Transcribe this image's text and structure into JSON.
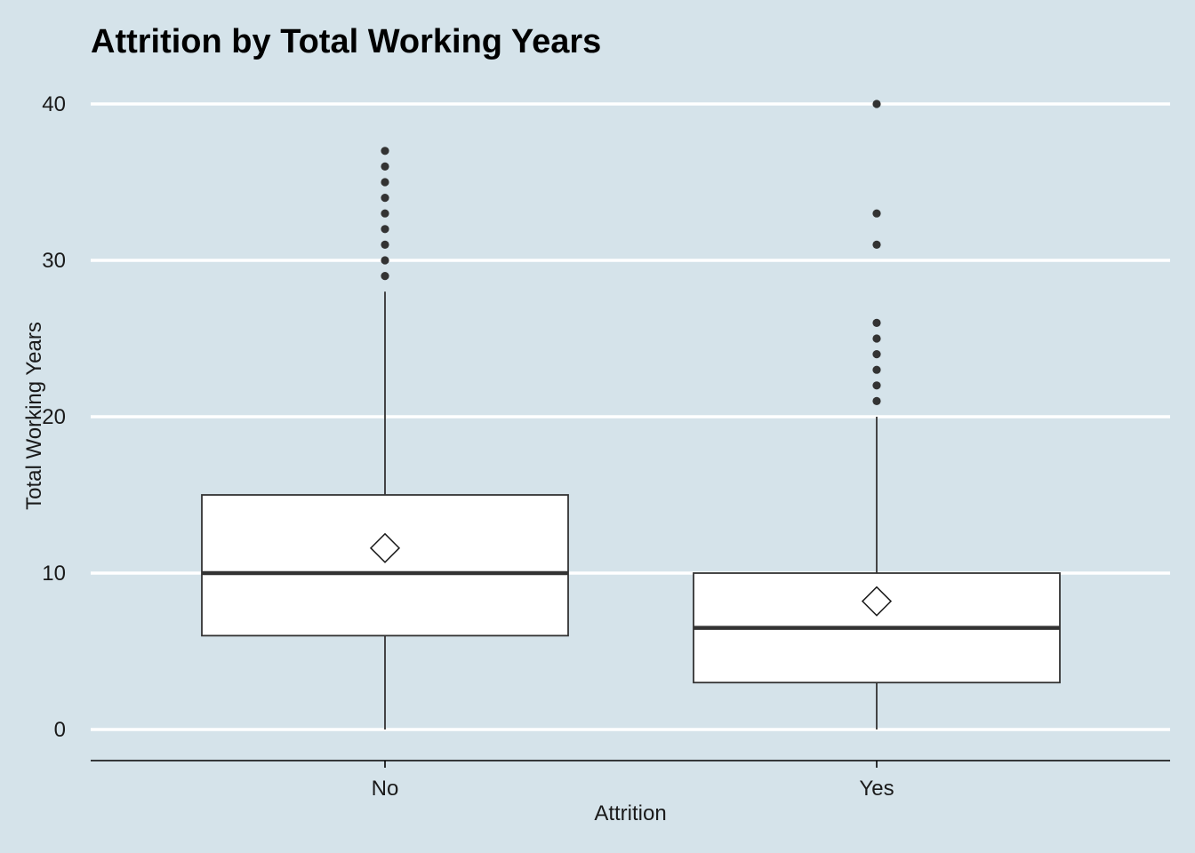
{
  "chart_data": {
    "type": "box",
    "title": "Attrition by Total Working Years",
    "xlabel": "Attrition",
    "ylabel": "Total Working Years",
    "categories": [
      "No",
      "Yes"
    ],
    "ylim": [
      -2,
      40
    ],
    "yticks": [
      0,
      10,
      20,
      30,
      40
    ],
    "grid": "horizontal major lines",
    "boxes": [
      {
        "category": "No",
        "whisker_low": 0,
        "q1": 6,
        "median": 10,
        "q3": 15,
        "whisker_high": 28,
        "mean": 11.6,
        "outliers": [
          29,
          30,
          31,
          32,
          33,
          34,
          35,
          36,
          37
        ]
      },
      {
        "category": "Yes",
        "whisker_low": 0,
        "q1": 3,
        "median": 6.5,
        "q3": 10,
        "whisker_high": 20,
        "mean": 8.2,
        "outliers": [
          21,
          22,
          23,
          24,
          25,
          26,
          31,
          33,
          40
        ]
      }
    ]
  },
  "colors": {
    "background": "#d5e3ea",
    "grid": "#ffffff",
    "box_fill": "#ffffff",
    "box_stroke": "#333333",
    "median": "#333333",
    "outlier": "#333333",
    "mean_marker": "#ffffff"
  }
}
